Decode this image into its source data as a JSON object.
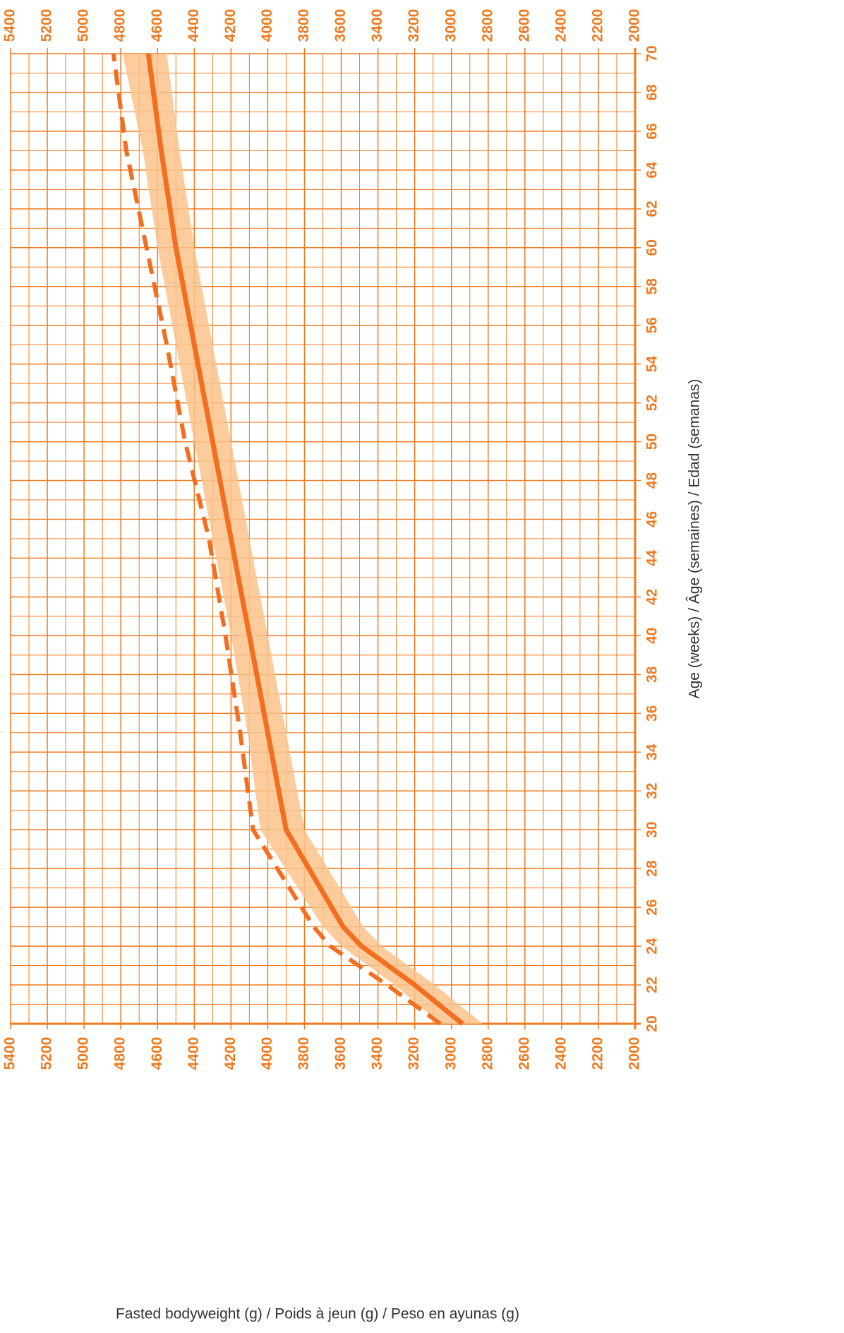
{
  "chart_data": {
    "type": "line",
    "orientation": "rotated",
    "xlabel": "Age (weeks) / Âge (semaines) / Edad (semanas)",
    "ylabel": "Fasted bodyweight (g) / Poids à jeun (g) / Peso en ayunas (g)",
    "x": [
      20,
      22,
      24,
      25,
      30,
      35,
      40,
      45,
      50,
      55,
      60,
      65,
      70
    ],
    "series": [
      {
        "color": "#f26f21",
        "style": "solid",
        "values": [
          2940,
          3200,
          3490,
          3590,
          3900,
          4000,
          4100,
          4200,
          4300,
          4400,
          4500,
          4580,
          4650
        ]
      },
      {
        "color": "#f26f21",
        "style": "dashed",
        "values": [
          3060,
          3350,
          3660,
          3750,
          4080,
          4150,
          4230,
          4320,
          4450,
          4550,
          4660,
          4770,
          4840
        ]
      }
    ],
    "band": {
      "color": "#fbc38c",
      "upper": [
        3060,
        3310,
        3600,
        3700,
        4040,
        4110,
        4200,
        4300,
        4400,
        4500,
        4600,
        4680,
        4790
      ],
      "lower": [
        2830,
        3090,
        3380,
        3480,
        3800,
        3900,
        4000,
        4100,
        4200,
        4300,
        4400,
        4480,
        4550
      ]
    },
    "xlim": [
      20,
      70
    ],
    "xticks": [
      20,
      22,
      24,
      26,
      28,
      30,
      32,
      34,
      36,
      38,
      40,
      42,
      44,
      46,
      48,
      50,
      52,
      54,
      56,
      58,
      60,
      62,
      64,
      66,
      68,
      70
    ],
    "ylim": [
      2000,
      5400
    ],
    "yticks": [
      2000,
      2200,
      2400,
      2600,
      2800,
      3000,
      3200,
      3400,
      3600,
      3800,
      4000,
      4200,
      4400,
      4600,
      4800,
      5000,
      5200,
      5400
    ],
    "grid": true,
    "grid_color": "#f07a1f"
  }
}
